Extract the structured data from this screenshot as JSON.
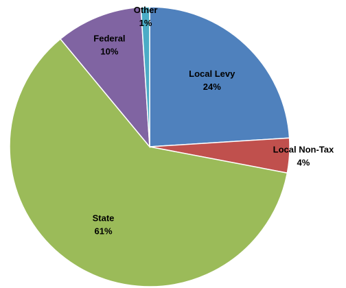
{
  "chart_data": {
    "type": "pie",
    "categories": [
      "Local Levy",
      "Local Non-Tax",
      "State",
      "Federal",
      "Other"
    ],
    "values": [
      24,
      4,
      61,
      10,
      1
    ],
    "value_labels": [
      "24%",
      "4%",
      "61%",
      "10%",
      "1%"
    ],
    "colors": [
      "#4f81bd",
      "#c0504d",
      "#9bbb59",
      "#8064a2",
      "#4bacc6"
    ]
  }
}
